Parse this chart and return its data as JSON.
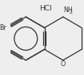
{
  "title": "HCl",
  "nh2_label": "NH",
  "nh2_sub": "2",
  "br_label": "Br",
  "o_label": "O",
  "bg_color": "#eeeeee",
  "line_color": "#333333",
  "text_color": "#333333",
  "line_width": 0.9,
  "font_size_hcl": 6.5,
  "font_size_atom": 5.8
}
